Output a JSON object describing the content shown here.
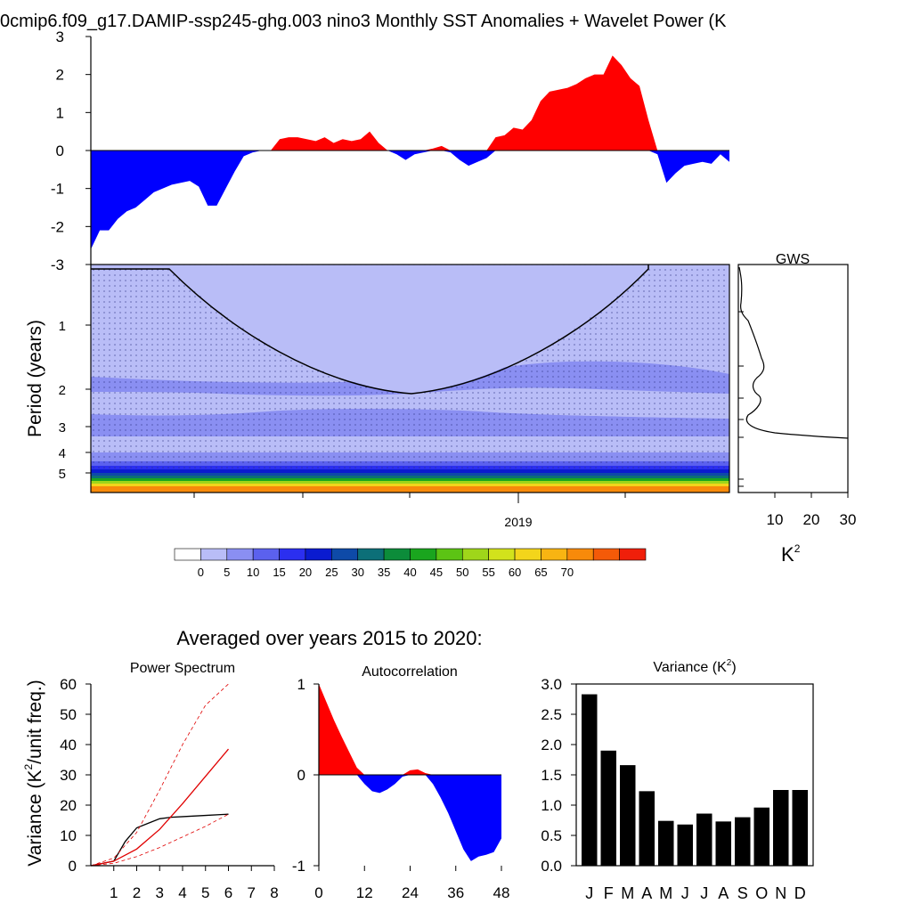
{
  "title": "0cmip6.f09_g17.DAMIP-ssp245-ghg.003 nino3 Monthly SST Anomalies + Wavelet Power (K",
  "averaged_title": "Averaged over years 2015 to 2020:",
  "gws_label": "GWS",
  "gws_unit_base": "K",
  "gws_unit_exp": "2",
  "period_ylabel": "Period (years)",
  "variance_ylabel_base": "Variance (K",
  "variance_ylabel_exp": "2",
  "variance_ylabel_tail": "/unit freq.)",
  "var_title_base": "Variance (K",
  "var_title_exp": "2",
  "var_title_tail": ")",
  "colorbar": {
    "colors": [
      "#ffffff",
      "#b9bdf7",
      "#8a8ff2",
      "#5b61ee",
      "#2b2ff0",
      "#0a1bd0",
      "#0e4aa8",
      "#0c6f78",
      "#0c8c3a",
      "#1aa51e",
      "#5cc414",
      "#9fd61a",
      "#d2e21c",
      "#f3d51b",
      "#f8b412",
      "#f88a0a",
      "#f45a08",
      "#f01f0a"
    ],
    "labels": [
      "0",
      "5",
      "10",
      "15",
      "20",
      "25",
      "30",
      "35",
      "40",
      "45",
      "50",
      "55",
      "60",
      "65",
      "70"
    ]
  },
  "chart_data": [
    {
      "type": "area",
      "name": "sst-anomaly",
      "title": "0cmip6.f09_g17.DAMIP-ssp245-ghg.003 nino3 Monthly SST Anomalies + Wavelet Power (K",
      "ylim": [
        -3,
        3
      ],
      "yticks": [
        3,
        2,
        1,
        0,
        -1,
        -2,
        -3
      ],
      "xlim": [
        2015,
        2021
      ],
      "x_months": 72,
      "values": [
        -2.6,
        -2.1,
        -2.1,
        -1.8,
        -1.6,
        -1.5,
        -1.3,
        -1.1,
        -1.0,
        -0.9,
        -0.85,
        -0.8,
        -0.95,
        -1.45,
        -1.45,
        -1.0,
        -0.55,
        -0.15,
        -0.05,
        0.0,
        0.0,
        0.3,
        0.35,
        0.35,
        0.3,
        0.25,
        0.35,
        0.2,
        0.3,
        0.25,
        0.3,
        0.5,
        0.2,
        0.0,
        -0.1,
        -0.25,
        -0.1,
        -0.05,
        0.05,
        0.12,
        -0.05,
        -0.25,
        -0.4,
        -0.3,
        -0.2,
        0.35,
        0.4,
        0.6,
        0.55,
        0.8,
        1.3,
        1.55,
        1.6,
        1.65,
        1.75,
        1.9,
        2.0,
        2.0,
        2.5,
        2.25,
        1.9,
        1.7,
        0.8,
        -0.1,
        -0.85,
        -0.6,
        -0.4,
        -0.35,
        -0.3,
        -0.35,
        -0.1,
        -0.3
      ]
    },
    {
      "type": "heatmap",
      "name": "wavelet-power",
      "ylabel": "Period (years)",
      "yticks": [
        "1",
        "2",
        "3",
        "4",
        "5"
      ],
      "xtick_labels": [
        "2019"
      ]
    },
    {
      "type": "line",
      "name": "global-wavelet-spectrum",
      "title": "GWS",
      "xticks": [
        10,
        20,
        30
      ],
      "xlim": [
        0,
        30
      ],
      "xlabel": "K2"
    },
    {
      "type": "line",
      "name": "power-spectrum",
      "title": "Power Spectrum",
      "ylabel": "Variance (K2/unit freq.)",
      "ylim": [
        0,
        60
      ],
      "xlim": [
        0,
        8
      ],
      "yticks": [
        0,
        10,
        20,
        30,
        40,
        50,
        60
      ],
      "xticks": [
        1,
        2,
        3,
        4,
        5,
        6,
        7,
        8
      ],
      "series": [
        {
          "x": [
            0,
            1,
            1.5,
            2,
            2.5,
            3,
            3.5,
            4,
            5,
            6
          ],
          "y": [
            0,
            1.5,
            8,
            12.5,
            14,
            15.5,
            16,
            16.2,
            16.6,
            17
          ]
        },
        {
          "x": [
            0,
            1,
            2,
            3,
            4,
            5,
            6
          ],
          "y": [
            0,
            1.5,
            5.5,
            12,
            20.5,
            29.5,
            38.5
          ]
        },
        {
          "x": [
            0,
            1,
            2,
            3,
            4,
            5,
            6
          ],
          "y": [
            0,
            2.5,
            11,
            25,
            40,
            53,
            61
          ]
        },
        {
          "x": [
            0,
            1,
            2,
            3,
            4,
            5,
            6
          ],
          "y": [
            0,
            0.8,
            3,
            6,
            9.5,
            13,
            17
          ]
        }
      ]
    },
    {
      "type": "area",
      "name": "autocorrelation",
      "title": "Autocorrelation",
      "ylim": [
        -1,
        1
      ],
      "xlim": [
        0,
        48
      ],
      "yticks": [
        1,
        0,
        -1
      ],
      "xticks": [
        0,
        12,
        24,
        36,
        48
      ],
      "x": [
        0,
        2,
        4,
        6,
        8,
        10,
        12,
        14,
        16,
        18,
        20,
        22,
        24,
        26,
        28,
        30,
        32,
        34,
        36,
        38,
        40,
        42,
        44,
        46,
        48
      ],
      "values": [
        1.0,
        0.8,
        0.6,
        0.42,
        0.25,
        0.08,
        -0.1,
        -0.18,
        -0.2,
        -0.16,
        -0.1,
        -0.02,
        0.05,
        0.06,
        0.02,
        -0.1,
        -0.25,
        -0.42,
        -0.62,
        -0.82,
        -0.95,
        -0.9,
        -0.88,
        -0.85,
        -0.7
      ]
    },
    {
      "type": "bar",
      "name": "monthly-variance",
      "title": "Variance (K2)",
      "categories": [
        "J",
        "F",
        "M",
        "A",
        "M",
        "J",
        "J",
        "A",
        "S",
        "O",
        "N",
        "D"
      ],
      "values": [
        2.83,
        1.9,
        1.66,
        1.23,
        0.74,
        0.68,
        0.86,
        0.73,
        0.8,
        0.96,
        1.25,
        1.25
      ],
      "ylim": [
        0,
        3.0
      ],
      "yticks": [
        "0.0",
        "0.5",
        "1.0",
        "1.5",
        "2.0",
        "2.5",
        "3.0"
      ]
    }
  ]
}
